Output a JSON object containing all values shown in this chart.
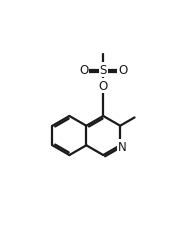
{
  "bg_color": "#ffffff",
  "line_color": "#1a1a1a",
  "line_width": 1.6,
  "figsize": [
    1.92,
    2.28
  ],
  "dpi": 100,
  "xlim": [
    0,
    9.5
  ],
  "ylim": [
    0,
    11.5
  ]
}
